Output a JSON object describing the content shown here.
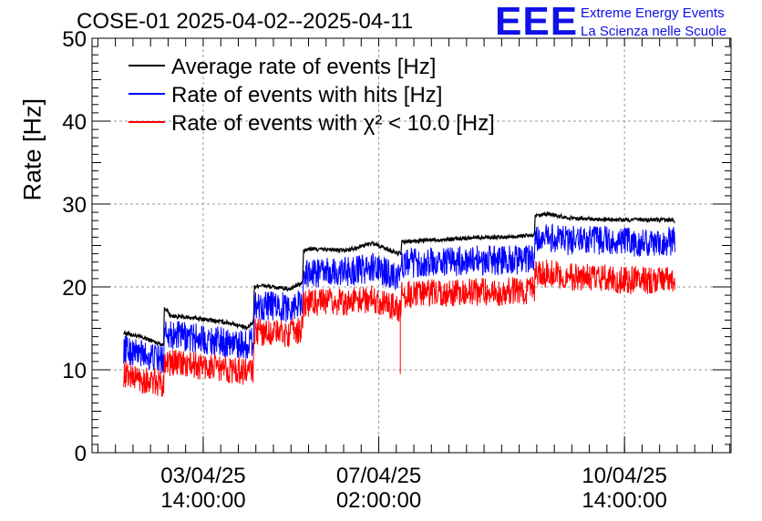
{
  "header": {
    "title": "COSE-01 2025-04-02--2025-04-11",
    "logo_letters": "EEE",
    "logo_line1": "Extreme Energy Events",
    "logo_line2": "La Scienza nelle Scuole"
  },
  "chart_data": {
    "type": "line",
    "title": "COSE-01 2025-04-02--2025-04-11",
    "ylabel": "Rate [Hz]",
    "xlabel": "",
    "ylim": [
      0,
      50
    ],
    "xlim": [
      0,
      9.1
    ],
    "x_unit": "days since 2025-04-02 00:00",
    "yticks": [
      0,
      10,
      20,
      30,
      40,
      50
    ],
    "xticks": [
      {
        "value": 1.583,
        "line1": "03/04/25",
        "line2": "14:00:00"
      },
      {
        "value": 4.083,
        "line1": "07/04/25",
        "line2": "02:00:00"
      },
      {
        "value": 7.583,
        "line1": "10/04/25",
        "line2": "14:00:00"
      }
    ],
    "grid": true,
    "legend_position": "top-left",
    "legend": [
      {
        "label": "Average rate of events [Hz]",
        "color": "#000000"
      },
      {
        "label": "Rate of events with hits [Hz]",
        "color": "#0000ff"
      },
      {
        "label": "Rate of events with χ² < 10.0 [Hz]",
        "color": "#ff0000"
      }
    ],
    "series": [
      {
        "name": "Average rate of events [Hz]",
        "color": "#000000",
        "noise": 0.25,
        "x": [
          0.45,
          0.75,
          1.02,
          1.03,
          1.12,
          1.5,
          2.0,
          2.2,
          2.3,
          2.31,
          2.4,
          2.8,
          3.0,
          3.01,
          3.1,
          3.6,
          4.0,
          4.3,
          4.4,
          4.41,
          4.7,
          5.2,
          5.5,
          5.9,
          6.2,
          6.3,
          6.31,
          6.5,
          6.8,
          7.2,
          7.3,
          7.31,
          7.5,
          8.0,
          8.3
        ],
        "y": [
          14.5,
          13.8,
          13.0,
          17.6,
          16.5,
          16.2,
          15.6,
          15.0,
          15.8,
          20.0,
          20.2,
          19.7,
          20.5,
          24.3,
          24.6,
          24.4,
          25.3,
          24.2,
          24.0,
          25.4,
          25.6,
          25.8,
          26.0,
          26.0,
          26.2,
          26.2,
          28.5,
          28.8,
          28.3,
          28.2,
          28.1,
          28.1,
          28.1,
          28.1,
          28.0
        ]
      },
      {
        "name": "Rate of events with hits [Hz]",
        "color": "#0000ff",
        "noise": 1.8,
        "x": [
          0.45,
          0.75,
          1.02,
          1.03,
          1.12,
          1.5,
          2.0,
          2.2,
          2.3,
          2.31,
          2.4,
          2.8,
          3.0,
          3.01,
          3.1,
          3.6,
          4.0,
          4.3,
          4.4,
          4.41,
          4.7,
          5.2,
          5.5,
          5.9,
          6.2,
          6.3,
          6.31,
          6.5,
          6.8,
          7.2,
          7.3,
          7.31,
          7.5,
          8.0,
          8.3
        ],
        "y": [
          12.5,
          11.8,
          11.2,
          15.2,
          14.2,
          13.8,
          13.2,
          13.0,
          13.5,
          17.8,
          17.8,
          17.5,
          18.2,
          21.5,
          21.7,
          21.8,
          22.3,
          21.4,
          21.2,
          22.8,
          22.9,
          23.1,
          23.2,
          23.2,
          23.3,
          23.3,
          25.5,
          25.8,
          25.6,
          25.5,
          25.5,
          25.5,
          25.4,
          25.4,
          25.6
        ]
      },
      {
        "name": "Rate of events with χ² < 10.0 [Hz]",
        "color": "#ff0000",
        "noise": 1.7,
        "x": [
          0.45,
          0.75,
          1.02,
          1.03,
          1.12,
          1.5,
          2.0,
          2.2,
          2.3,
          2.31,
          2.4,
          2.8,
          3.0,
          3.01,
          3.1,
          3.6,
          4.0,
          4.3,
          4.4,
          4.41,
          4.7,
          5.2,
          5.5,
          5.9,
          6.2,
          6.3,
          6.31,
          6.5,
          6.8,
          7.2,
          7.3,
          7.31,
          7.5,
          8.0,
          8.3
        ],
        "y": [
          9.5,
          8.8,
          8.2,
          11.4,
          10.8,
          10.5,
          10.0,
          9.8,
          10.0,
          14.5,
          14.6,
          14.4,
          15.0,
          18.0,
          18.1,
          18.2,
          18.6,
          17.6,
          17.3,
          19.0,
          19.2,
          19.3,
          19.4,
          19.4,
          19.6,
          19.6,
          21.3,
          21.7,
          21.2,
          21.0,
          21.0,
          21.0,
          20.8,
          20.8,
          20.9
        ],
        "spike": {
          "x": 4.39,
          "y": 9.5
        }
      }
    ]
  }
}
